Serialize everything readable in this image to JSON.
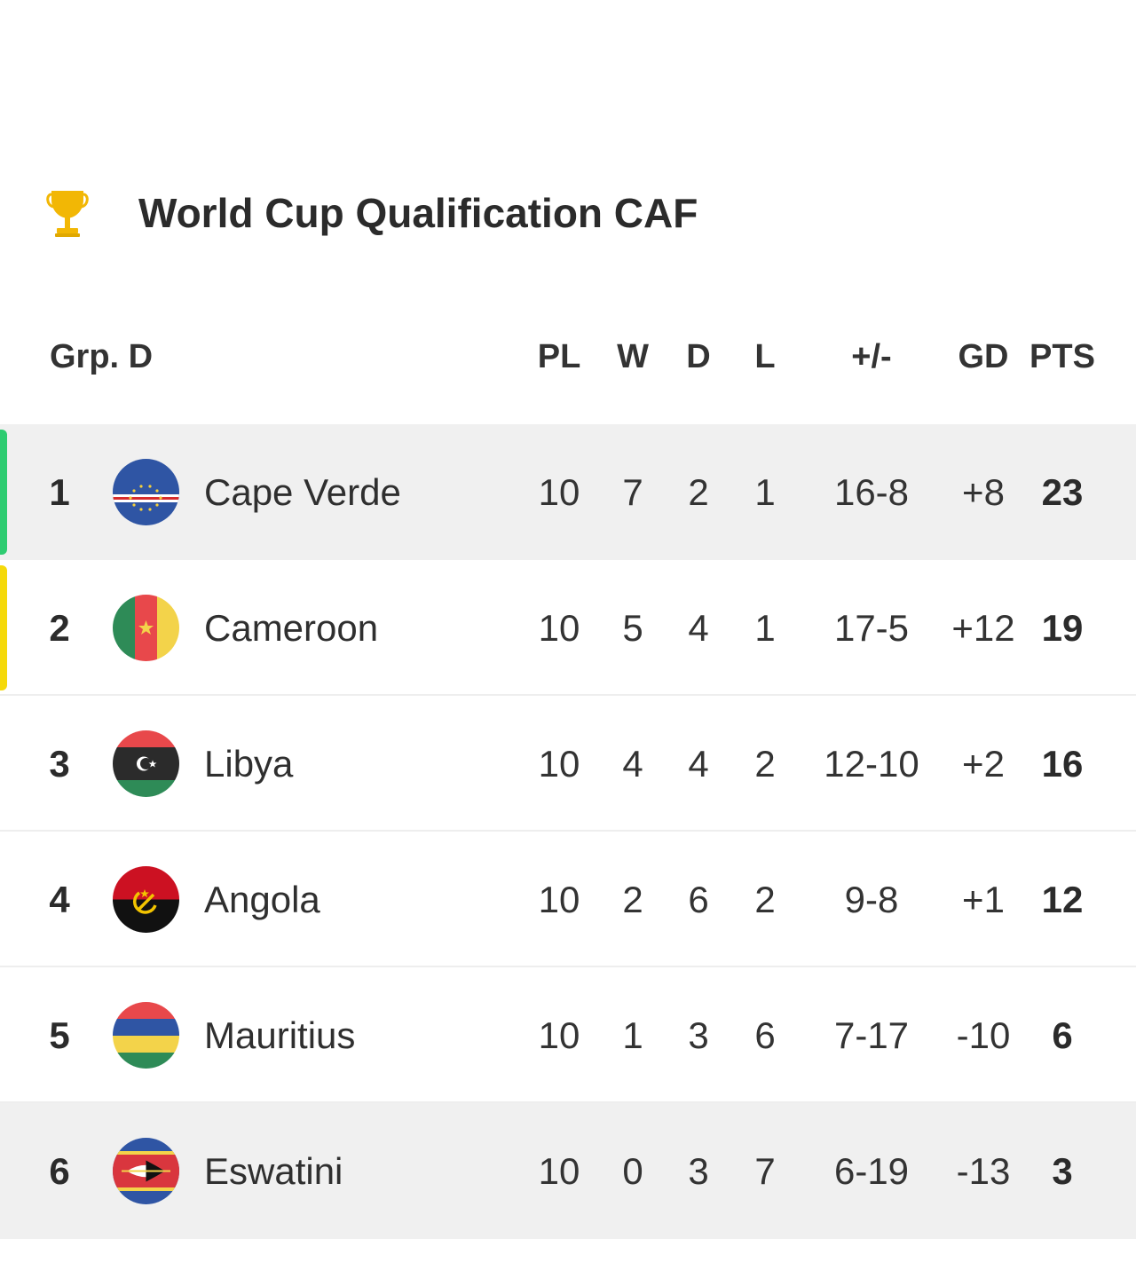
{
  "header": {
    "icon": "trophy-icon",
    "title": "World Cup Qualification CAF"
  },
  "table": {
    "group_label": "Grp. D",
    "columns": {
      "pl": "PL",
      "w": "W",
      "d": "D",
      "l": "L",
      "goals": "+/-",
      "gd": "GD",
      "pts": "PTS"
    },
    "rows": [
      {
        "rank": "1",
        "team": "Cape Verde",
        "flag": "cape-verde-flag",
        "pl": "10",
        "w": "7",
        "d": "2",
        "l": "1",
        "goals": "16-8",
        "gd": "+8",
        "pts": "23",
        "zone_color": "#2ecc71"
      },
      {
        "rank": "2",
        "team": "Cameroon",
        "flag": "cameroon-flag",
        "pl": "10",
        "w": "5",
        "d": "4",
        "l": "1",
        "goals": "17-5",
        "gd": "+12",
        "pts": "19",
        "zone_color": "#f5d90a"
      },
      {
        "rank": "3",
        "team": "Libya",
        "flag": "libya-flag",
        "pl": "10",
        "w": "4",
        "d": "4",
        "l": "2",
        "goals": "12-10",
        "gd": "+2",
        "pts": "16"
      },
      {
        "rank": "4",
        "team": "Angola",
        "flag": "angola-flag",
        "pl": "10",
        "w": "2",
        "d": "6",
        "l": "2",
        "goals": "9-8",
        "gd": "+1",
        "pts": "12"
      },
      {
        "rank": "5",
        "team": "Mauritius",
        "flag": "mauritius-flag",
        "pl": "10",
        "w": "1",
        "d": "3",
        "l": "6",
        "goals": "7-17",
        "gd": "-10",
        "pts": "6"
      },
      {
        "rank": "6",
        "team": "Eswatini",
        "flag": "eswatini-flag",
        "pl": "10",
        "w": "0",
        "d": "3",
        "l": "7",
        "goals": "6-19",
        "gd": "-13",
        "pts": "3"
      }
    ]
  },
  "colors": {
    "qualified": "#2ecc71",
    "playoff": "#f5d90a",
    "row_highlight": "#f0f0f0",
    "trophy": "#f2b705"
  }
}
